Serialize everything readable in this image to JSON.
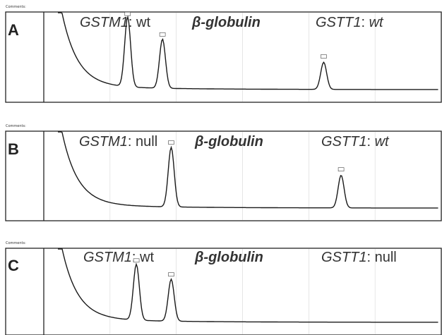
{
  "header_text": "Comments:",
  "colors": {
    "trace": "#1a1a1a",
    "frame": "#222222",
    "grid": "#d6d6d6",
    "text": "#333333"
  },
  "chart_data": [
    {
      "type": "line",
      "panel": "A",
      "peaks": [
        {
          "gene": "GSTM1",
          "genotype": "wt",
          "x": 0.28,
          "rel_height": 0.95
        },
        {
          "gene": "β-globulin",
          "genotype": "",
          "x": 0.36,
          "rel_height": 0.67
        },
        {
          "gene": "GSTT1",
          "genotype": "wt",
          "x": 0.73,
          "rel_height": 0.37
        }
      ]
    },
    {
      "type": "line",
      "panel": "B",
      "peaks": [
        {
          "gene": "GSTM1",
          "genotype": "null",
          "x": null,
          "rel_height": 0
        },
        {
          "gene": "β-globulin",
          "genotype": "",
          "x": 0.38,
          "rel_height": 0.82
        },
        {
          "gene": "GSTT1",
          "genotype": "wt",
          "x": 0.77,
          "rel_height": 0.45
        }
      ]
    },
    {
      "type": "line",
      "panel": "C",
      "peaks": [
        {
          "gene": "GSTM1",
          "genotype": "wt",
          "x": 0.3,
          "rel_height": 0.8
        },
        {
          "gene": "β-globulin",
          "genotype": "",
          "x": 0.38,
          "rel_height": 0.6
        },
        {
          "gene": "GSTT1",
          "genotype": "null",
          "x": null,
          "rel_height": 0
        }
      ]
    }
  ]
}
